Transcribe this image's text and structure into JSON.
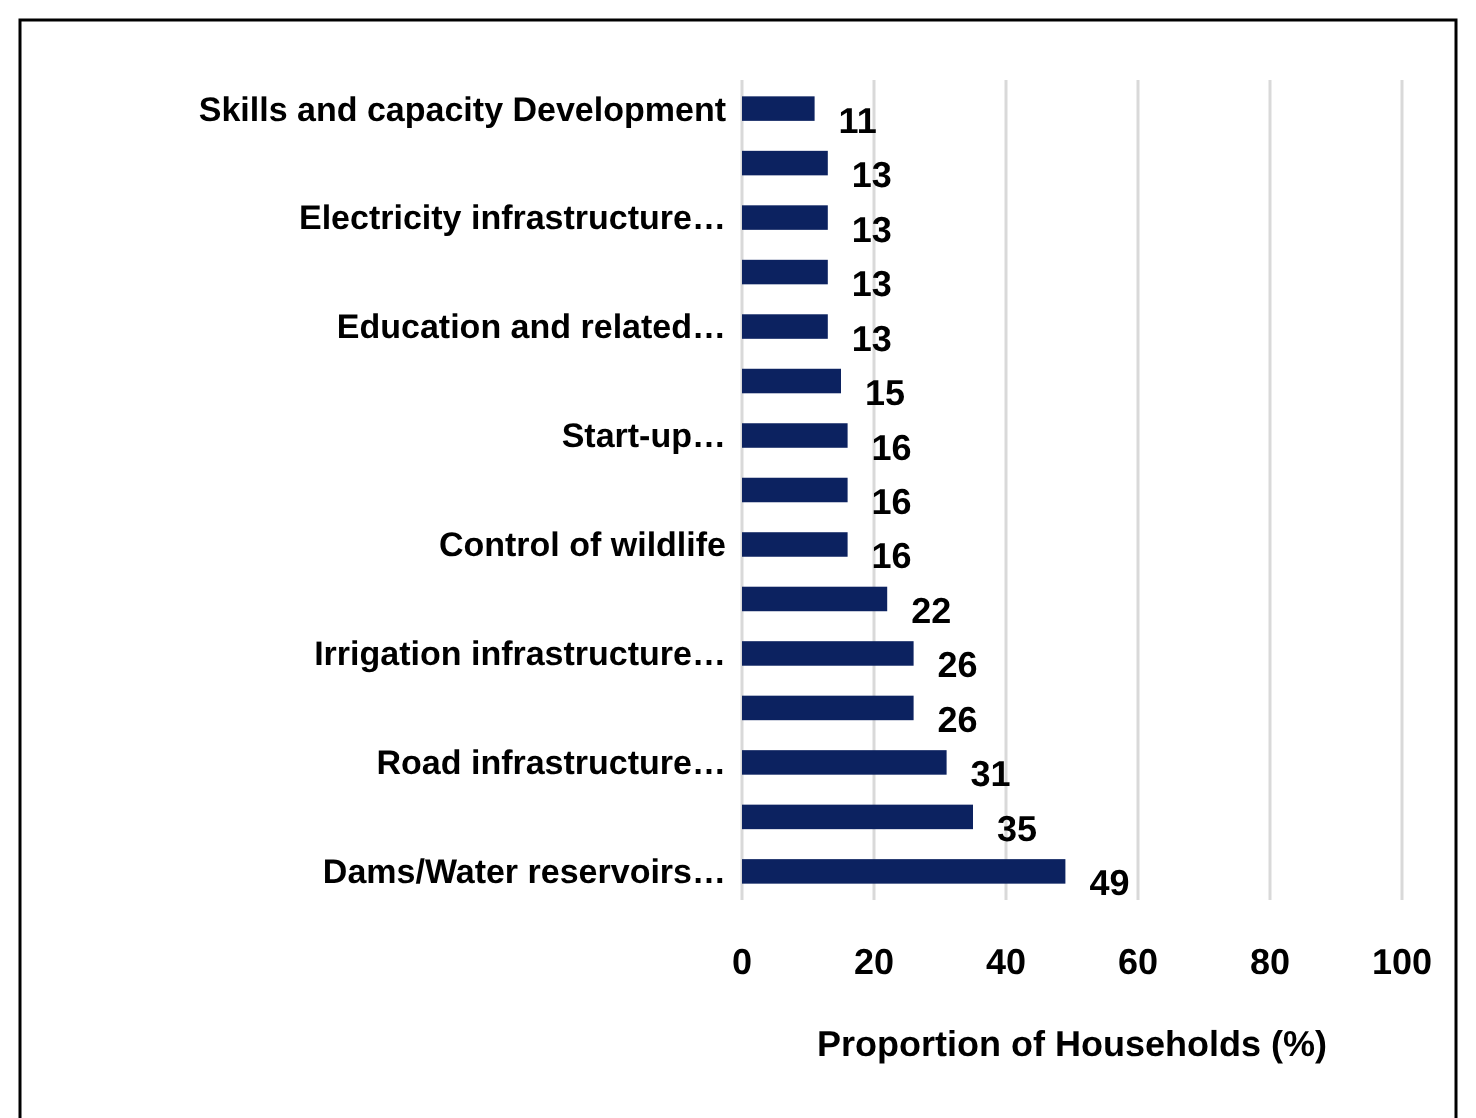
{
  "chart_data": {
    "type": "bar",
    "orientation": "horizontal",
    "xlabel": "Proportion of Households (%)",
    "categories": [
      "Skills and capacity Development",
      null,
      "Electricity infrastructure…",
      null,
      "Education and related…",
      null,
      "Start-up…",
      null,
      "Control of wildlife",
      null,
      "Irrigation infrastructure…",
      null,
      "Road infrastructure…",
      null,
      "Dams/Water reservoirs…"
    ],
    "values": [
      11,
      13,
      13,
      13,
      13,
      15,
      16,
      16,
      16,
      22,
      26,
      26,
      31,
      35,
      49
    ],
    "color": "#0c2260",
    "xlim": [
      0,
      100
    ],
    "xticks": [
      0,
      20,
      40,
      60,
      80,
      100
    ],
    "grid": "x",
    "data_labels": true
  }
}
